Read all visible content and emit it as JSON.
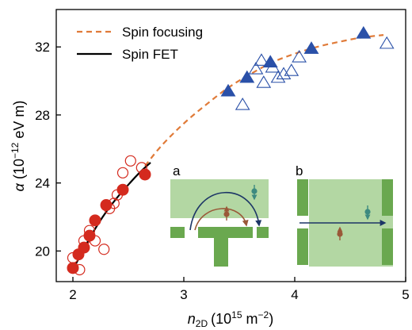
{
  "chart_data": {
    "type": "scatter",
    "xlabel": "n2D (10^15 m^-2)",
    "xlabel_parts": {
      "var": "n",
      "sub": "2D",
      "unit_open": "(10",
      "exp1": "15",
      "unit_mid": " m",
      "exp2": "−2",
      "unit_close": ")"
    },
    "ylabel": "α (10^-12 eV m)",
    "ylabel_parts": {
      "var": "α",
      "unit_open": " (10",
      "exp": "−12",
      "unit_close": " eV m)"
    },
    "xlim": [
      1.85,
      5.0
    ],
    "ylim": [
      18.2,
      34.2
    ],
    "xticks": [
      2,
      3,
      4,
      5
    ],
    "xtick_labels": [
      "2",
      "3",
      "4",
      "5"
    ],
    "yticks": [
      20,
      24,
      28,
      32
    ],
    "ytick_labels": [
      "20",
      "24",
      "28",
      "32"
    ],
    "grid": false,
    "legend_position": "top-left",
    "legend": [
      {
        "label": "Spin focusing",
        "style": "dashed",
        "color": "#e07b39"
      },
      {
        "label": "Spin FET",
        "style": "solid",
        "color": "#000000"
      }
    ],
    "colors": {
      "red": "#d42a1e",
      "blue": "#2a50a8",
      "fit_dashed": "#e07b39",
      "fit_solid": "#000000",
      "device_green": "#6aa84f",
      "channel_green": "#b3d7a3",
      "arrow_navy": "#1c3566",
      "spin_teal": "#3d8a80",
      "spin_brown": "#9a5838"
    },
    "series": [
      {
        "marker": "circle-filled",
        "color": "#d42a1e",
        "x": [
          2.0,
          2.05,
          2.1,
          2.15,
          2.2,
          2.3,
          2.45,
          2.65
        ],
        "y": [
          19.0,
          19.8,
          20.2,
          20.9,
          21.8,
          22.7,
          23.6,
          24.5
        ]
      },
      {
        "marker": "circle-open",
        "color": "#d42a1e",
        "x": [
          2.0,
          2.06,
          2.1,
          2.15,
          2.2,
          2.28,
          2.33,
          2.37,
          2.4,
          2.45,
          2.52,
          2.62
        ],
        "y": [
          19.6,
          18.9,
          20.6,
          21.2,
          20.6,
          20.1,
          22.5,
          22.8,
          23.3,
          24.6,
          25.3,
          24.9
        ]
      },
      {
        "marker": "triangle-filled",
        "color": "#2a50a8",
        "x": [
          3.4,
          3.57,
          3.78,
          4.15,
          4.62
        ],
        "y": [
          29.4,
          30.2,
          31.1,
          31.9,
          32.8
        ]
      },
      {
        "marker": "triangle-open",
        "color": "#2a50a8",
        "x": [
          3.53,
          3.65,
          3.7,
          3.72,
          3.8,
          3.85,
          3.9,
          3.97,
          4.04,
          4.83
        ],
        "y": [
          28.6,
          30.7,
          31.2,
          29.9,
          30.8,
          30.2,
          30.4,
          30.6,
          31.4,
          32.2
        ]
      }
    ],
    "fits": [
      {
        "name": "Spin focusing",
        "style": "dashed",
        "color": "#e07b39",
        "x": [
          2.65,
          2.8,
          3.0,
          3.2,
          3.4,
          3.6,
          3.8,
          4.0,
          4.2,
          4.4,
          4.6,
          4.8
        ],
        "y": [
          25.0,
          26.2,
          27.5,
          28.6,
          29.6,
          30.4,
          31.1,
          31.6,
          32.0,
          32.3,
          32.55,
          32.7
        ]
      },
      {
        "name": "Spin FET",
        "style": "solid",
        "color": "#000000",
        "x": [
          2.0,
          2.1,
          2.2,
          2.3,
          2.4,
          2.5,
          2.6,
          2.7
        ],
        "y": [
          18.9,
          20.15,
          21.3,
          22.3,
          23.15,
          23.9,
          24.6,
          25.2
        ]
      }
    ],
    "insets": [
      {
        "letter": "a"
      },
      {
        "letter": "b"
      }
    ]
  }
}
